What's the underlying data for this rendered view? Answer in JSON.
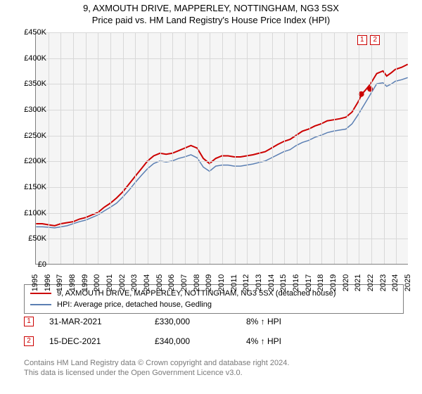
{
  "titles": {
    "line1": "9, AXMOUTH DRIVE, MAPPERLEY, NOTTINGHAM, NG3 5SX",
    "line2": "Price paid vs. HM Land Registry's House Price Index (HPI)"
  },
  "chart": {
    "type": "line",
    "background_color": "#f5f5f5",
    "grid_color": "#d8d8d8",
    "axis_color": "#7f7f7f",
    "y": {
      "min": 0,
      "max": 450,
      "step": 50,
      "prefix": "£",
      "suffix": "K"
    },
    "x": {
      "min": 1995,
      "max": 2025,
      "step": 1
    },
    "series": [
      {
        "name": "price_paid",
        "color": "#cc0000",
        "width": 2,
        "legend": "9, AXMOUTH DRIVE, MAPPERLEY, NOTTINGHAM, NG3 5SX (detached house)",
        "points": [
          [
            1995,
            78
          ],
          [
            1995.5,
            78
          ],
          [
            1996,
            76
          ],
          [
            1996.5,
            74
          ],
          [
            1997,
            78
          ],
          [
            1997.5,
            80
          ],
          [
            1998,
            82
          ],
          [
            1998.5,
            87
          ],
          [
            1999,
            90
          ],
          [
            1999.5,
            95
          ],
          [
            2000,
            100
          ],
          [
            2000.5,
            110
          ],
          [
            2001,
            118
          ],
          [
            2001.5,
            128
          ],
          [
            2002,
            140
          ],
          [
            2002.5,
            155
          ],
          [
            2003,
            170
          ],
          [
            2003.5,
            185
          ],
          [
            2004,
            200
          ],
          [
            2004.5,
            210
          ],
          [
            2005,
            215
          ],
          [
            2005.5,
            213
          ],
          [
            2006,
            215
          ],
          [
            2006.5,
            220
          ],
          [
            2007,
            225
          ],
          [
            2007.5,
            230
          ],
          [
            2008,
            225
          ],
          [
            2008.5,
            205
          ],
          [
            2009,
            195
          ],
          [
            2009.5,
            205
          ],
          [
            2010,
            210
          ],
          [
            2010.5,
            210
          ],
          [
            2011,
            208
          ],
          [
            2011.5,
            208
          ],
          [
            2012,
            210
          ],
          [
            2012.5,
            212
          ],
          [
            2013,
            215
          ],
          [
            2013.5,
            218
          ],
          [
            2014,
            225
          ],
          [
            2014.5,
            232
          ],
          [
            2015,
            238
          ],
          [
            2015.5,
            242
          ],
          [
            2016,
            250
          ],
          [
            2016.5,
            258
          ],
          [
            2017,
            262
          ],
          [
            2017.5,
            268
          ],
          [
            2018,
            272
          ],
          [
            2018.5,
            278
          ],
          [
            2019,
            280
          ],
          [
            2019.5,
            282
          ],
          [
            2020,
            285
          ],
          [
            2020.5,
            295
          ],
          [
            2021,
            315
          ],
          [
            2021.3,
            330
          ],
          [
            2021.6,
            338
          ],
          [
            2022,
            350
          ],
          [
            2022.5,
            370
          ],
          [
            2023,
            375
          ],
          [
            2023.3,
            365
          ],
          [
            2023.7,
            372
          ],
          [
            2024,
            378
          ],
          [
            2024.5,
            382
          ],
          [
            2025,
            388
          ]
        ]
      },
      {
        "name": "hpi",
        "color": "#5b7fb3",
        "width": 1.5,
        "legend": "HPI: Average price, detached house, Gedling",
        "points": [
          [
            1995,
            72
          ],
          [
            1995.5,
            72
          ],
          [
            1996,
            71
          ],
          [
            1996.5,
            70
          ],
          [
            1997,
            72
          ],
          [
            1997.5,
            74
          ],
          [
            1998,
            78
          ],
          [
            1998.5,
            82
          ],
          [
            1999,
            85
          ],
          [
            1999.5,
            90
          ],
          [
            2000,
            95
          ],
          [
            2000.5,
            103
          ],
          [
            2001,
            110
          ],
          [
            2001.5,
            118
          ],
          [
            2002,
            130
          ],
          [
            2002.5,
            143
          ],
          [
            2003,
            158
          ],
          [
            2003.5,
            172
          ],
          [
            2004,
            185
          ],
          [
            2004.5,
            195
          ],
          [
            2005,
            200
          ],
          [
            2005.5,
            198
          ],
          [
            2006,
            200
          ],
          [
            2006.5,
            205
          ],
          [
            2007,
            208
          ],
          [
            2007.5,
            212
          ],
          [
            2008,
            206
          ],
          [
            2008.5,
            188
          ],
          [
            2009,
            180
          ],
          [
            2009.5,
            190
          ],
          [
            2010,
            192
          ],
          [
            2010.5,
            192
          ],
          [
            2011,
            190
          ],
          [
            2011.5,
            190
          ],
          [
            2012,
            192
          ],
          [
            2012.5,
            194
          ],
          [
            2013,
            197
          ],
          [
            2013.5,
            200
          ],
          [
            2014,
            206
          ],
          [
            2014.5,
            212
          ],
          [
            2015,
            218
          ],
          [
            2015.5,
            222
          ],
          [
            2016,
            230
          ],
          [
            2016.5,
            236
          ],
          [
            2017,
            240
          ],
          [
            2017.5,
            246
          ],
          [
            2018,
            250
          ],
          [
            2018.5,
            255
          ],
          [
            2019,
            258
          ],
          [
            2019.5,
            260
          ],
          [
            2020,
            262
          ],
          [
            2020.5,
            272
          ],
          [
            2021,
            290
          ],
          [
            2021.5,
            310
          ],
          [
            2022,
            330
          ],
          [
            2022.5,
            350
          ],
          [
            2023,
            352
          ],
          [
            2023.3,
            345
          ],
          [
            2023.7,
            350
          ],
          [
            2024,
            355
          ],
          [
            2024.5,
            358
          ],
          [
            2025,
            362
          ]
        ]
      }
    ],
    "sale_markers": [
      {
        "n": "1",
        "x": 2021.25,
        "y": 330
      },
      {
        "n": "2",
        "x": 2021.96,
        "y": 340
      }
    ],
    "annotation_markers": [
      {
        "n": "1",
        "x": 2021.25,
        "y": 435
      },
      {
        "n": "2",
        "x": 2022.3,
        "y": 435
      }
    ]
  },
  "sales": [
    {
      "n": "1",
      "date": "31-MAR-2021",
      "price": "£330,000",
      "pct": "8% ↑ HPI"
    },
    {
      "n": "2",
      "date": "15-DEC-2021",
      "price": "£340,000",
      "pct": "4% ↑ HPI"
    }
  ],
  "footnote": {
    "l1": "Contains HM Land Registry data © Crown copyright and database right 2024.",
    "l2": "This data is licensed under the Open Government Licence v3.0."
  }
}
